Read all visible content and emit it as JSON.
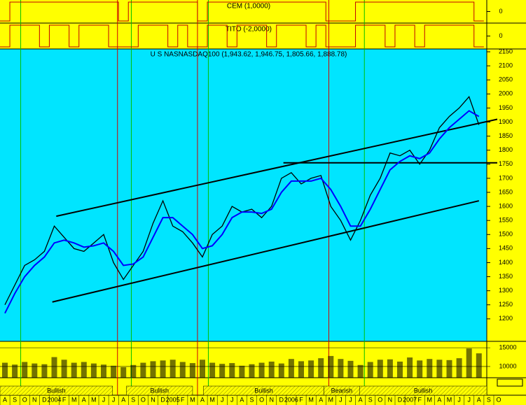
{
  "chart_data": {
    "type": "line",
    "title": "U S NASNASDAQ100 (1,943.62, 1,946.75, 1,805.66, 1,888.78)",
    "months": [
      "A",
      "S",
      "O",
      "N",
      "D",
      "2004",
      "F",
      "M",
      "A",
      "M",
      "J",
      "J",
      "A",
      "S",
      "O",
      "N",
      "D",
      "2005",
      "F",
      "M",
      "A",
      "M",
      "J",
      "J",
      "A",
      "S",
      "O",
      "N",
      "D",
      "2006",
      "F",
      "M",
      "A",
      "M",
      "J",
      "J",
      "A",
      "S",
      "O",
      "N",
      "D",
      "2007",
      "F",
      "M",
      "A",
      "M",
      "J",
      "J",
      "A",
      "S",
      "O"
    ],
    "ylim": [
      1120,
      2160
    ],
    "yticks": [
      1200,
      1250,
      1300,
      1350,
      1400,
      1450,
      1500,
      1550,
      1600,
      1650,
      1700,
      1750,
      1800,
      1850,
      1900,
      1950,
      2000,
      2050,
      2100,
      2150
    ],
    "series": [
      {
        "color": "#000000",
        "values": [
          1250,
          1320,
          1390,
          1410,
          1440,
          1530,
          1490,
          1450,
          1440,
          1470,
          1500,
          1400,
          1340,
          1390,
          1440,
          1540,
          1620,
          1530,
          1510,
          1470,
          1420,
          1500,
          1530,
          1600,
          1580,
          1590,
          1560,
          1600,
          1700,
          1720,
          1680,
          1700,
          1710,
          1600,
          1550,
          1480,
          1550,
          1640,
          1700,
          1790,
          1780,
          1800,
          1750,
          1800,
          1880,
          1920,
          1950,
          1990,
          1890
        ]
      },
      {
        "color": "#0000ff",
        "values": [
          1220,
          1290,
          1350,
          1390,
          1420,
          1470,
          1480,
          1470,
          1455,
          1460,
          1470,
          1440,
          1390,
          1395,
          1420,
          1490,
          1560,
          1560,
          1530,
          1500,
          1450,
          1460,
          1500,
          1560,
          1580,
          1580,
          1575,
          1590,
          1650,
          1690,
          1690,
          1690,
          1700,
          1660,
          1600,
          1530,
          1530,
          1590,
          1660,
          1730,
          1760,
          1780,
          1770,
          1790,
          1840,
          1880,
          1910,
          1940,
          1920
        ]
      }
    ],
    "trendlines": [
      {
        "x": [
          5.2,
          50
        ],
        "y": [
          1565,
          1910
        ]
      },
      {
        "x": [
          4.8,
          48
        ],
        "y": [
          1260,
          1620
        ]
      },
      {
        "x": [
          28.2,
          50
        ],
        "y": [
          1755,
          1755
        ]
      }
    ],
    "signals": {
      "red": [
        11.4,
        19.5,
        32.8
      ],
      "green": [
        1.6,
        12.8,
        20.6,
        36.4
      ]
    },
    "cem": {
      "label": "CEM (1,0000)",
      "ylim": [
        -1,
        1
      ],
      "yticks": [
        0
      ],
      "values": [
        -1,
        1,
        1,
        1,
        1,
        1,
        1,
        1,
        1,
        1,
        1,
        1,
        -1,
        1,
        1,
        1,
        1,
        1,
        1,
        1,
        -1,
        1,
        1,
        1,
        1,
        1,
        1,
        1,
        1,
        1,
        1,
        1,
        1,
        -1,
        -1,
        -1,
        1,
        1,
        1,
        1,
        1,
        1,
        1,
        1,
        1,
        1,
        1,
        1,
        -1
      ]
    },
    "tito": {
      "label": "TITO (-2,0000)",
      "ylim": [
        -1,
        1
      ],
      "yticks": [
        0
      ],
      "values": [
        -1,
        1,
        1,
        1,
        -1,
        1,
        1,
        -1,
        1,
        1,
        1,
        -1,
        -1,
        -1,
        1,
        1,
        1,
        -1,
        1,
        -1,
        -1,
        1,
        1,
        -1,
        1,
        1,
        1,
        -1,
        1,
        1,
        1,
        -1,
        1,
        -1,
        -1,
        -1,
        1,
        1,
        1,
        -1,
        1,
        1,
        -1,
        1,
        1,
        1,
        1,
        1,
        -1
      ]
    },
    "volume": {
      "ylim": [
        7000,
        16700
      ],
      "yticks": [
        {
          "value": 15000,
          "label": "15000"
        },
        {
          "value": 10000,
          "label": "10000"
        }
      ],
      "values": [
        11000,
        10500,
        11200,
        10800,
        10600,
        12500,
        11800,
        11000,
        11200,
        10800,
        10500,
        10200,
        9800,
        10400,
        11000,
        11400,
        11600,
        11800,
        11200,
        10900,
        11800,
        11000,
        10700,
        10900,
        10200,
        10600,
        11000,
        11300,
        10800,
        12000,
        11400,
        11600,
        12200,
        12800,
        12000,
        11500,
        10400,
        11200,
        11800,
        11900,
        11300,
        12400,
        11600,
        12000,
        11800,
        11700,
        12200,
        14800,
        13500
      ]
    },
    "regimes": [
      {
        "label": "Bullish",
        "x": [
          0,
          11.4
        ]
      },
      {
        "label": "Bullish",
        "x": [
          12.8,
          19.5
        ]
      },
      {
        "label": "Bullish",
        "x": [
          20.6,
          32.8
        ]
      },
      {
        "label": "Bearish",
        "x": [
          32.8,
          36.4
        ]
      },
      {
        "label": "Bullish",
        "x": [
          36.4,
          50
        ]
      }
    ]
  }
}
